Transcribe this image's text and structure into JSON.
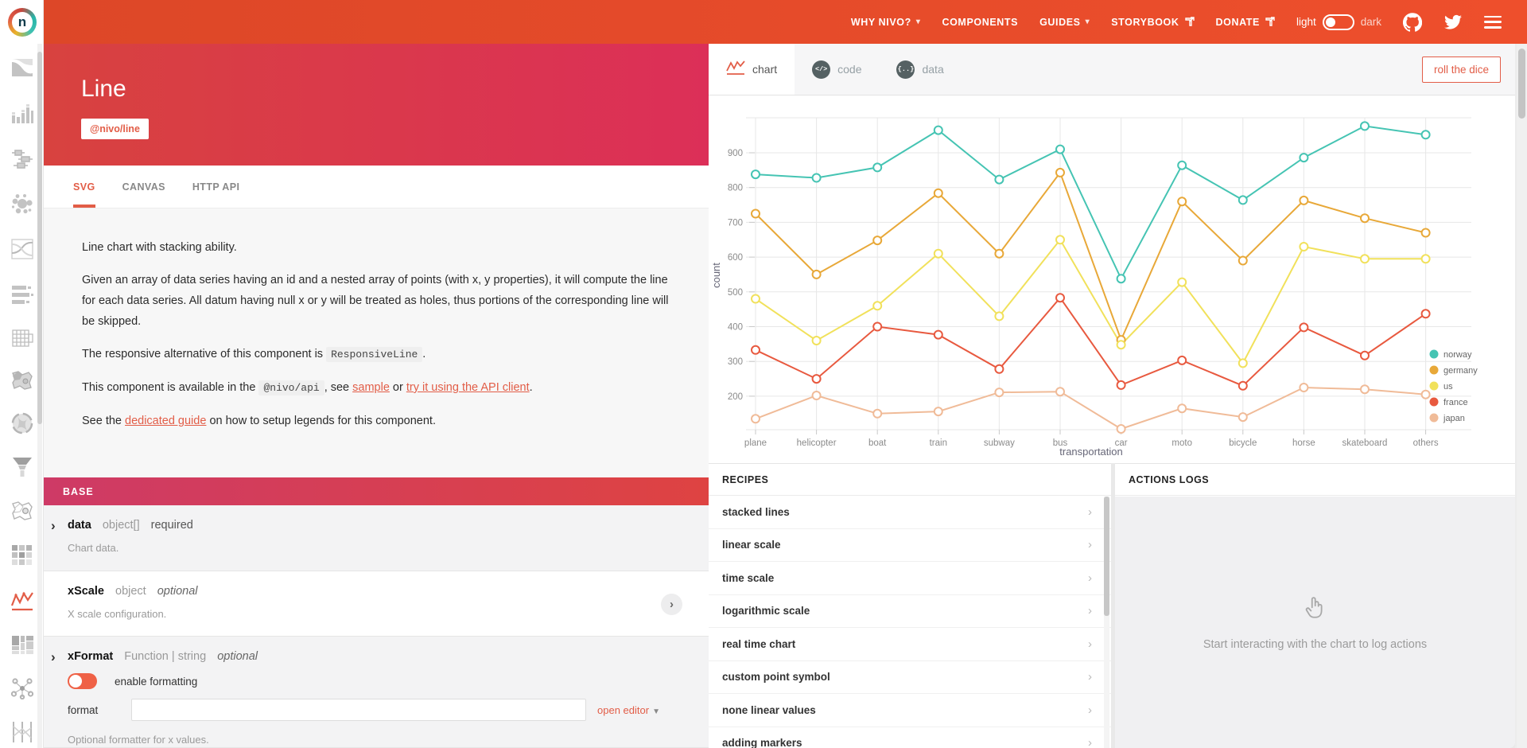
{
  "nav": {
    "items": [
      {
        "label": "WHY NIVO?",
        "chevron": true
      },
      {
        "label": "COMPONENTS"
      },
      {
        "label": "GUIDES",
        "chevron": true
      },
      {
        "label": "STORYBOOK",
        "external": true
      },
      {
        "label": "DONATE",
        "external": true
      }
    ],
    "theme": {
      "light": "light",
      "dark": "dark"
    }
  },
  "sidebar": {
    "icons": [
      "area-bump",
      "bar",
      "boxplot",
      "circle-packing",
      "bump",
      "bullet",
      "calendar",
      "choropleth",
      "chord",
      "funnel",
      "geomap",
      "heatmap",
      "line",
      "marimekko",
      "network",
      "parallel-coordinates"
    ],
    "active_icon": "line"
  },
  "page": {
    "title": "Line",
    "badge": "@nivo/line",
    "tabs": [
      "SVG",
      "CANVAS",
      "HTTP API"
    ],
    "active_tab": "SVG",
    "desc": {
      "p1": "Line chart with stacking ability.",
      "p2": "Given an array of data series having an id and a nested array of points (with x, y properties), it will compute the line for each data series. All datum having null x or y will be treated as holes, thus portions of the corresponding line will be skipped.",
      "p3a": "The responsive alternative of this component is ",
      "p3code": "ResponsiveLine",
      "p3b": ".",
      "p4a": "This component is available in the ",
      "p4code": "@nivo/api",
      "p4b": ", see ",
      "p4link1": "sample",
      "p4c": " or ",
      "p4link2": "try it using the API client",
      "p4d": ".",
      "p5a": "See the ",
      "p5link": "dedicated guide",
      "p5b": " on how to setup legends for this component."
    }
  },
  "props": {
    "section": "BASE",
    "rows": [
      {
        "name": "data",
        "type": "object[]",
        "flag": "required",
        "desc": "Chart data."
      },
      {
        "name": "xScale",
        "type": "object",
        "flag": "optional",
        "desc": "X scale configuration."
      },
      {
        "name": "xFormat",
        "type": "Function | string",
        "flag": "optional",
        "toggle_label": "enable formatting",
        "format_label": "format",
        "format_value": "",
        "open_editor_label": "open editor",
        "desc": "Optional formatter for x values."
      }
    ]
  },
  "simulator": {
    "tabs": [
      {
        "label": "chart",
        "icon": "line-chart-icon"
      },
      {
        "label": "code",
        "icon": "code-icon"
      },
      {
        "label": "data",
        "icon": "braces-icon"
      }
    ],
    "active_tab": "chart",
    "roll_button": "roll the dice"
  },
  "chart_data": {
    "type": "line",
    "title": "",
    "xlabel": "transportation",
    "ylabel": "count",
    "grid": true,
    "legend_position": "bottom-right",
    "categories": [
      "plane",
      "helicopter",
      "boat",
      "train",
      "subway",
      "bus",
      "car",
      "moto",
      "bicycle",
      "horse",
      "skateboard",
      "others"
    ],
    "y_ticks": [
      200,
      300,
      400,
      500,
      600,
      700,
      800,
      900
    ],
    "ylim": [
      100,
      1000
    ],
    "series": [
      {
        "name": "norway",
        "color": "#45c4b3",
        "values": [
          838,
          828,
          858,
          965,
          823,
          910,
          538,
          864,
          764,
          886,
          977,
          952
        ]
      },
      {
        "name": "germany",
        "color": "#e8a838",
        "values": [
          725,
          550,
          648,
          784,
          610,
          843,
          362,
          760,
          590,
          763,
          712,
          670
        ]
      },
      {
        "name": "us",
        "color": "#f1e15b",
        "values": [
          480,
          360,
          460,
          610,
          430,
          650,
          348,
          528,
          295,
          630,
          595,
          595
        ]
      },
      {
        "name": "france",
        "color": "#e8593f",
        "values": [
          333,
          250,
          400,
          377,
          278,
          483,
          232,
          303,
          230,
          398,
          317,
          437
        ]
      },
      {
        "name": "japan",
        "color": "#f0bb98",
        "values": [
          135,
          202,
          150,
          156,
          211,
          213,
          106,
          165,
          140,
          225,
          220,
          205
        ]
      }
    ]
  },
  "recipes": {
    "title": "RECIPES",
    "items": [
      "stacked lines",
      "linear scale",
      "time scale",
      "logarithmic scale",
      "real time chart",
      "custom point symbol",
      "none linear values",
      "adding markers"
    ]
  },
  "actions": {
    "title": "ACTIONS LOGS",
    "empty_text": "Start interacting with the chart to log actions"
  }
}
